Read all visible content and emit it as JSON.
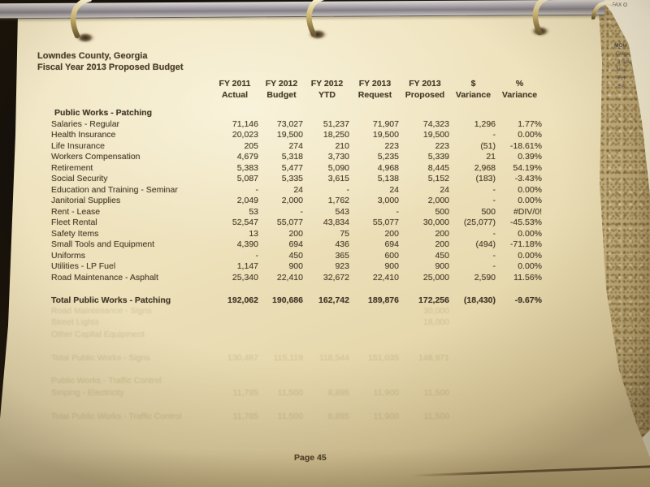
{
  "doc": {
    "title_line1": "Lowndes County, Georgia",
    "title_line2": "Fiscal Year 2013 Proposed Budget",
    "page_footer": "Page 45",
    "table": {
      "column_headers": [
        [
          "",
          ""
        ],
        [
          "FY 2011",
          "Actual"
        ],
        [
          "FY 2012",
          "Budget"
        ],
        [
          "FY 2012",
          "YTD"
        ],
        [
          "FY 2013",
          "Request"
        ],
        [
          "FY 2013",
          "Proposed"
        ],
        [
          "$",
          "Variance"
        ],
        [
          "%",
          "Variance"
        ]
      ],
      "section_header": "Public Works - Patching",
      "rows": [
        {
          "label": "Salaries - Regular",
          "values": [
            "71,146",
            "73,027",
            "51,237",
            "71,907",
            "74,323",
            "1,296",
            "1.77%"
          ]
        },
        {
          "label": "Health Insurance",
          "values": [
            "20,023",
            "19,500",
            "18,250",
            "19,500",
            "19,500",
            "-",
            "0.00%"
          ]
        },
        {
          "label": "Life Insurance",
          "values": [
            "205",
            "274",
            "210",
            "223",
            "223",
            "(51)",
            "-18.61%"
          ]
        },
        {
          "label": "Workers Compensation",
          "values": [
            "4,679",
            "5,318",
            "3,730",
            "5,235",
            "5,339",
            "21",
            "0.39%"
          ]
        },
        {
          "label": "Retirement",
          "values": [
            "5,383",
            "5,477",
            "5,090",
            "4,968",
            "8,445",
            "2,968",
            "54.19%"
          ]
        },
        {
          "label": "Social Security",
          "values": [
            "5,087",
            "5,335",
            "3,615",
            "5,138",
            "5,152",
            "(183)",
            "-3.43%"
          ]
        },
        {
          "label": "Education and Training - Seminar",
          "values": [
            "-",
            "24",
            "-",
            "24",
            "24",
            "-",
            "0.00%"
          ]
        },
        {
          "label": "Janitorial Supplies",
          "values": [
            "2,049",
            "2,000",
            "1,762",
            "3,000",
            "2,000",
            "-",
            "0.00%"
          ]
        },
        {
          "label": "Rent - Lease",
          "values": [
            "53",
            "-",
            "543",
            "-",
            "500",
            "500",
            "#DIV/0!"
          ]
        },
        {
          "label": "Fleet Rental",
          "values": [
            "52,547",
            "55,077",
            "43,834",
            "55,077",
            "30,000",
            "(25,077)",
            "-45.53%"
          ]
        },
        {
          "label": "Safety Items",
          "values": [
            "13",
            "200",
            "75",
            "200",
            "200",
            "-",
            "0.00%"
          ]
        },
        {
          "label": "Small Tools and Equipment",
          "values": [
            "4,390",
            "694",
            "436",
            "694",
            "200",
            "(494)",
            "-71.18%"
          ]
        },
        {
          "label": "Uniforms",
          "values": [
            "-",
            "450",
            "365",
            "600",
            "450",
            "-",
            "0.00%"
          ]
        },
        {
          "label": "Utilities - LP Fuel",
          "values": [
            "1,147",
            "900",
            "923",
            "900",
            "900",
            "-",
            "0.00%"
          ]
        },
        {
          "label": "Road Maintenance - Asphalt",
          "values": [
            "25,340",
            "22,410",
            "32,672",
            "22,410",
            "25,000",
            "2,590",
            "11.56%"
          ]
        }
      ],
      "total_row": {
        "label": "Total Public Works - Patching",
        "values": [
          "192,062",
          "190,686",
          "162,742",
          "189,876",
          "172,256",
          "(18,430)",
          "-9.67%"
        ]
      }
    },
    "bleed_through_rows": [
      {
        "label": "Road Maintenance - Signs",
        "values": [
          "",
          "",
          "",
          "",
          "30,000",
          "",
          ""
        ]
      },
      {
        "label": "Street Lights",
        "values": [
          "",
          "",
          "",
          "",
          "18,000",
          "",
          ""
        ]
      },
      {
        "label": "Other Capital Equipment",
        "values": [
          "",
          "",
          "",
          "",
          "",
          "",
          ""
        ]
      },
      {
        "label": "",
        "values": [
          "",
          "",
          "",
          "",
          "",
          "",
          ""
        ]
      },
      {
        "label": "Total Public Works - Signs",
        "values": [
          "130,487",
          "115,119",
          "118,544",
          "151,035",
          "148,971",
          "",
          ""
        ]
      },
      {
        "label": "",
        "values": [
          "",
          "",
          "",
          "",
          "",
          "",
          ""
        ]
      },
      {
        "label": "Public Works - Traffic Control",
        "values": [
          "",
          "",
          "",
          "",
          "",
          "",
          ""
        ]
      },
      {
        "label": "Striping - Electricity",
        "values": [
          "11,785",
          "11,500",
          "8,895",
          "11,900",
          "11,500",
          "",
          ""
        ]
      },
      {
        "label": "",
        "values": [
          "",
          "",
          "",
          "",
          "",
          "",
          ""
        ]
      },
      {
        "label": "Total Public Works - Traffic Control",
        "values": [
          "11,785",
          "11,500",
          "8,895",
          "11,900",
          "11,500",
          "",
          ""
        ]
      }
    ],
    "background_page_fragments": [
      "FAX O",
      "MOU",
      "Colqu",
      "9 Sou",
      "Mou",
      "PH",
      "FA"
    ]
  },
  "colors": {
    "paper": "#eee2bc",
    "ink": "#4e4230",
    "granite": "#c3ae7c",
    "ring_gold": "#caa84f",
    "binder_bar": "#aca7ab",
    "background": "#15100a"
  }
}
